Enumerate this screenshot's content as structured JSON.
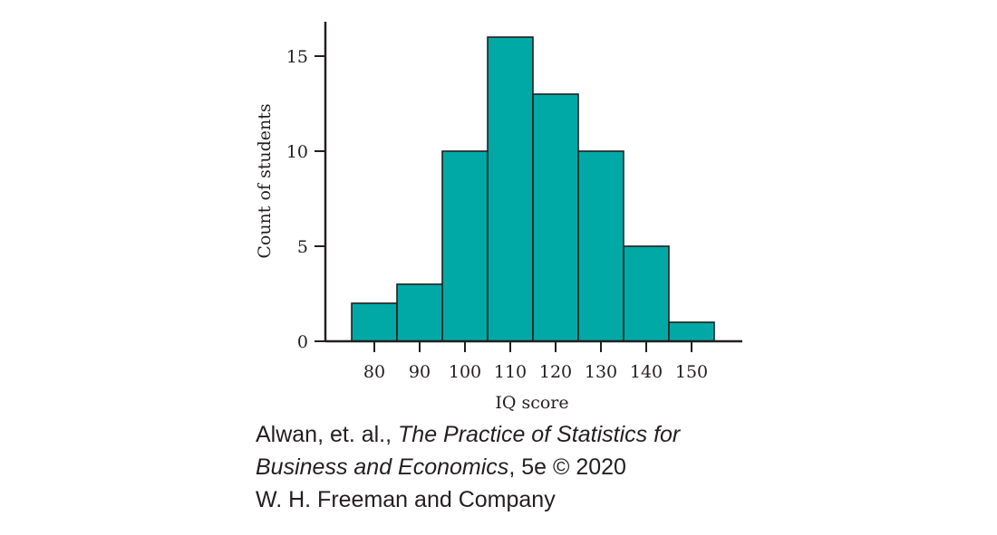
{
  "chart_data": {
    "type": "bar",
    "bin_width": 10,
    "categories": [
      "80",
      "90",
      "100",
      "110",
      "120",
      "130",
      "140",
      "150"
    ],
    "values": [
      2,
      3,
      10,
      16,
      13,
      10,
      5,
      1
    ],
    "xlabel": "IQ score",
    "ylabel": "Count of students",
    "xlim": [
      70,
      160
    ],
    "ylim": [
      0,
      17
    ],
    "yticks": [
      "0",
      "5",
      "10",
      "15"
    ],
    "bar_color": "#00a9a5",
    "bar_edge_color": "#231f20",
    "grid": false
  },
  "caption": {
    "line1_plain": "Alwan, et. al., ",
    "line1_italic": "The Practice of Statistics for",
    "line2_italic": "Business and Economics",
    "line2_plain": ", 5e © 2020",
    "line3": "W. H. Freeman and Company"
  }
}
